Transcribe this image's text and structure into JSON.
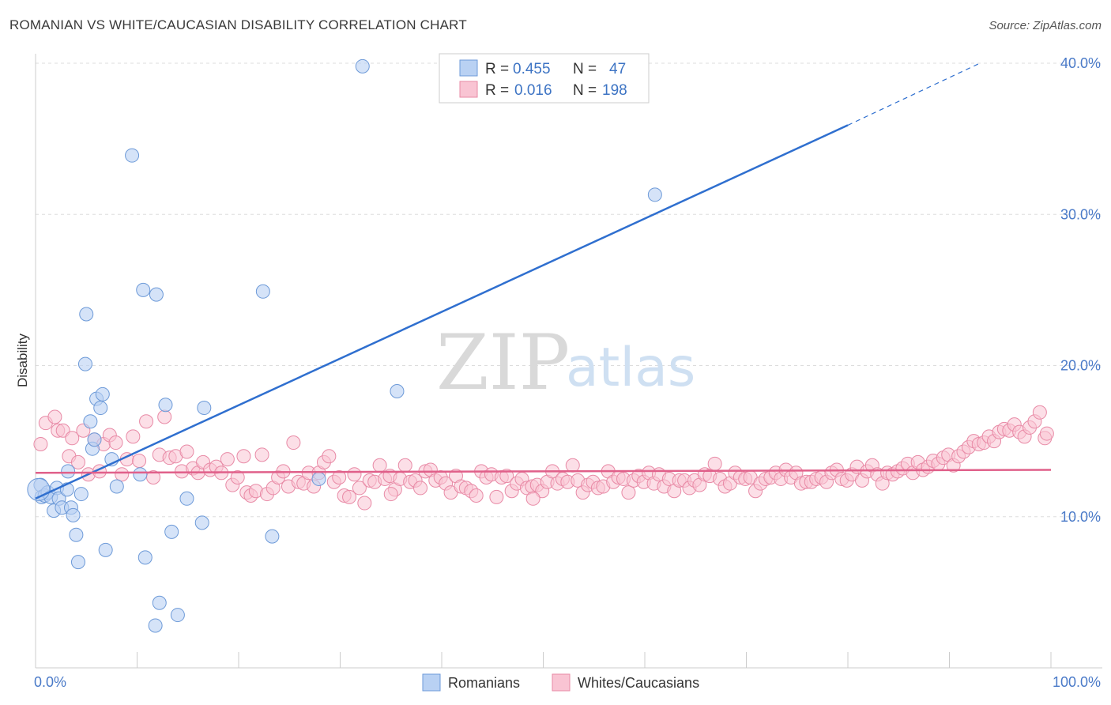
{
  "title": "ROMANIAN VS WHITE/CAUCASIAN DISABILITY CORRELATION CHART",
  "source": "Source: ZipAtlas.com",
  "watermark": {
    "zip": "ZIP",
    "atlas": "atlas"
  },
  "colors": {
    "blue_fill": "#b9d1f3",
    "blue_stroke": "#6d9ad8",
    "blue_line": "#2f6fcf",
    "pink_fill": "#f9c4d3",
    "pink_stroke": "#e88aa6",
    "pink_line": "#e0608a",
    "grid": "#dddddd",
    "tick_label": "#4a7ac8"
  },
  "legend": {
    "rows": [
      {
        "r_label": "R =",
        "r_value": "0.455",
        "n_label": "N =",
        "n_value": "47"
      },
      {
        "r_label": "R =",
        "r_value": "0.016",
        "n_label": "N =",
        "n_value": "198"
      }
    ]
  },
  "bottom_legend": [
    "Romanians",
    "Whites/Caucasians"
  ],
  "chart_data": {
    "type": "scatter",
    "xlabel": "",
    "ylabel": "Disability",
    "xlim": [
      0,
      100
    ],
    "ylim": [
      0,
      41
    ],
    "x_tick_labels": [
      "0.0%",
      "100.0%"
    ],
    "y_ticks": [
      10,
      20,
      30,
      40
    ],
    "y_tick_labels": [
      "10.0%",
      "20.0%",
      "30.0%",
      "40.0%"
    ],
    "series": [
      {
        "name": "Romanians",
        "points": [
          [
            0.5,
            12.1
          ],
          [
            0.6,
            11.3
          ],
          [
            0.9,
            11.4
          ],
          [
            1.2,
            11.6
          ],
          [
            1.5,
            11.3
          ],
          [
            1.8,
            10.4
          ],
          [
            2.1,
            11.9
          ],
          [
            2.3,
            11.2
          ],
          [
            2.6,
            10.6
          ],
          [
            3.1,
            11.8
          ],
          [
            3.2,
            13.0
          ],
          [
            3.5,
            10.6
          ],
          [
            3.7,
            10.1
          ],
          [
            4.0,
            8.8
          ],
          [
            4.2,
            7.0
          ],
          [
            4.5,
            11.5
          ],
          [
            5.0,
            23.4
          ],
          [
            4.9,
            20.1
          ],
          [
            5.4,
            16.3
          ],
          [
            5.6,
            14.5
          ],
          [
            5.8,
            15.1
          ],
          [
            6.0,
            17.8
          ],
          [
            6.4,
            17.2
          ],
          [
            6.6,
            18.1
          ],
          [
            6.9,
            7.8
          ],
          [
            7.5,
            13.8
          ],
          [
            8.0,
            12.0
          ],
          [
            9.5,
            33.9
          ],
          [
            10.3,
            12.8
          ],
          [
            10.6,
            25.0
          ],
          [
            10.8,
            7.3
          ],
          [
            11.9,
            24.7
          ],
          [
            12.2,
            4.3
          ],
          [
            12.8,
            17.4
          ],
          [
            13.4,
            9.0
          ],
          [
            14.0,
            3.5
          ],
          [
            11.8,
            2.8
          ],
          [
            14.9,
            11.2
          ],
          [
            16.4,
            9.6
          ],
          [
            16.6,
            17.2
          ],
          [
            22.4,
            24.9
          ],
          [
            23.3,
            8.7
          ],
          [
            27.9,
            12.5
          ],
          [
            32.2,
            39.8
          ],
          [
            35.6,
            18.3
          ],
          [
            61.0,
            31.3
          ],
          [
            0.3,
            11.8
          ]
        ],
        "trend": {
          "x0": 0,
          "y0": 11.2,
          "x1": 80.0,
          "y1": 35.9,
          "dash_x1": 93.0,
          "dash_y1": 40.0
        }
      },
      {
        "name": "Whites/Caucasians",
        "points": [
          [
            0.5,
            14.8
          ],
          [
            1.0,
            16.2
          ],
          [
            1.9,
            16.6
          ],
          [
            2.2,
            15.7
          ],
          [
            2.7,
            15.7
          ],
          [
            3.3,
            14.0
          ],
          [
            3.6,
            15.2
          ],
          [
            4.2,
            13.6
          ],
          [
            4.7,
            15.7
          ],
          [
            5.2,
            12.8
          ],
          [
            5.8,
            15.1
          ],
          [
            6.3,
            13.0
          ],
          [
            6.7,
            14.8
          ],
          [
            7.3,
            15.4
          ],
          [
            7.9,
            14.9
          ],
          [
            8.5,
            12.8
          ],
          [
            9.0,
            13.8
          ],
          [
            9.6,
            15.3
          ],
          [
            10.2,
            13.7
          ],
          [
            10.9,
            16.3
          ],
          [
            11.6,
            12.6
          ],
          [
            12.2,
            14.1
          ],
          [
            12.7,
            16.6
          ],
          [
            13.2,
            13.9
          ],
          [
            13.8,
            14.0
          ],
          [
            14.4,
            13.0
          ],
          [
            14.9,
            14.3
          ],
          [
            15.5,
            13.2
          ],
          [
            16.0,
            12.9
          ],
          [
            16.5,
            13.6
          ],
          [
            17.2,
            13.1
          ],
          [
            17.8,
            13.3
          ],
          [
            18.3,
            12.9
          ],
          [
            18.9,
            13.8
          ],
          [
            19.4,
            12.1
          ],
          [
            19.9,
            12.6
          ],
          [
            20.5,
            14.0
          ],
          [
            20.8,
            11.6
          ],
          [
            21.2,
            11.4
          ],
          [
            21.7,
            11.7
          ],
          [
            22.3,
            14.1
          ],
          [
            22.8,
            11.5
          ],
          [
            23.4,
            11.9
          ],
          [
            23.9,
            12.6
          ],
          [
            24.4,
            13.0
          ],
          [
            24.9,
            12.0
          ],
          [
            25.4,
            14.9
          ],
          [
            25.9,
            12.3
          ],
          [
            26.4,
            12.2
          ],
          [
            26.9,
            12.9
          ],
          [
            27.4,
            12.0
          ],
          [
            27.9,
            12.9
          ],
          [
            28.4,
            13.6
          ],
          [
            28.9,
            14.0
          ],
          [
            29.4,
            12.3
          ],
          [
            29.9,
            12.6
          ],
          [
            30.4,
            11.4
          ],
          [
            30.9,
            11.3
          ],
          [
            31.4,
            12.8
          ],
          [
            31.9,
            11.9
          ],
          [
            32.4,
            10.9
          ],
          [
            32.9,
            12.4
          ],
          [
            33.4,
            12.3
          ],
          [
            33.9,
            13.4
          ],
          [
            34.4,
            12.5
          ],
          [
            34.9,
            12.7
          ],
          [
            35.4,
            11.8
          ],
          [
            35.9,
            12.5
          ],
          [
            36.4,
            13.4
          ],
          [
            36.9,
            12.3
          ],
          [
            37.4,
            12.4
          ],
          [
            37.9,
            11.9
          ],
          [
            38.4,
            13.0
          ],
          [
            38.9,
            13.1
          ],
          [
            39.4,
            12.4
          ],
          [
            39.9,
            12.6
          ],
          [
            40.4,
            12.2
          ],
          [
            40.9,
            11.6
          ],
          [
            41.4,
            12.7
          ],
          [
            41.9,
            12.0
          ],
          [
            42.4,
            11.9
          ],
          [
            42.9,
            11.7
          ],
          [
            43.4,
            11.4
          ],
          [
            43.9,
            13.0
          ],
          [
            44.4,
            12.6
          ],
          [
            44.9,
            12.8
          ],
          [
            45.4,
            11.3
          ],
          [
            45.9,
            12.6
          ],
          [
            46.4,
            12.7
          ],
          [
            46.9,
            11.7
          ],
          [
            47.4,
            12.2
          ],
          [
            47.9,
            12.5
          ],
          [
            48.4,
            11.9
          ],
          [
            48.9,
            12.0
          ],
          [
            49.4,
            12.1
          ],
          [
            49.9,
            11.7
          ],
          [
            50.4,
            12.3
          ],
          [
            50.9,
            13.0
          ],
          [
            51.4,
            12.2
          ],
          [
            51.9,
            12.5
          ],
          [
            52.4,
            12.3
          ],
          [
            52.9,
            13.4
          ],
          [
            53.4,
            12.4
          ],
          [
            53.9,
            11.6
          ],
          [
            54.4,
            12.1
          ],
          [
            54.9,
            12.3
          ],
          [
            55.4,
            11.9
          ],
          [
            55.9,
            12.0
          ],
          [
            56.4,
            13.0
          ],
          [
            56.9,
            12.3
          ],
          [
            57.4,
            12.6
          ],
          [
            57.9,
            12.5
          ],
          [
            58.4,
            11.6
          ],
          [
            58.9,
            12.4
          ],
          [
            59.4,
            12.7
          ],
          [
            59.9,
            12.3
          ],
          [
            60.4,
            12.9
          ],
          [
            60.9,
            12.2
          ],
          [
            61.4,
            12.8
          ],
          [
            61.9,
            12.0
          ],
          [
            62.4,
            12.5
          ],
          [
            62.9,
            11.7
          ],
          [
            63.4,
            12.4
          ],
          [
            63.9,
            12.4
          ],
          [
            64.4,
            11.9
          ],
          [
            64.9,
            12.4
          ],
          [
            65.4,
            12.1
          ],
          [
            65.9,
            12.8
          ],
          [
            66.4,
            12.7
          ],
          [
            66.9,
            13.5
          ],
          [
            67.4,
            12.5
          ],
          [
            67.9,
            12.0
          ],
          [
            68.4,
            12.2
          ],
          [
            68.9,
            12.9
          ],
          [
            69.4,
            12.6
          ],
          [
            69.9,
            12.5
          ],
          [
            70.4,
            12.6
          ],
          [
            70.9,
            11.7
          ],
          [
            71.4,
            12.2
          ],
          [
            71.9,
            12.5
          ],
          [
            72.4,
            12.6
          ],
          [
            72.9,
            12.9
          ],
          [
            73.4,
            12.5
          ],
          [
            73.9,
            13.1
          ],
          [
            74.4,
            12.6
          ],
          [
            74.9,
            12.9
          ],
          [
            75.4,
            12.2
          ],
          [
            75.9,
            12.3
          ],
          [
            76.4,
            12.3
          ],
          [
            76.9,
            12.5
          ],
          [
            77.4,
            12.6
          ],
          [
            77.9,
            12.3
          ],
          [
            78.4,
            12.9
          ],
          [
            78.9,
            13.1
          ],
          [
            79.4,
            12.5
          ],
          [
            79.9,
            12.4
          ],
          [
            80.4,
            12.8
          ],
          [
            80.9,
            13.3
          ],
          [
            81.4,
            12.4
          ],
          [
            81.9,
            13.0
          ],
          [
            82.4,
            13.4
          ],
          [
            82.9,
            12.8
          ],
          [
            83.4,
            12.2
          ],
          [
            83.9,
            12.9
          ],
          [
            84.4,
            12.8
          ],
          [
            84.9,
            13.0
          ],
          [
            85.4,
            13.2
          ],
          [
            85.9,
            13.5
          ],
          [
            86.4,
            12.9
          ],
          [
            86.9,
            13.6
          ],
          [
            87.4,
            13.1
          ],
          [
            87.9,
            13.3
          ],
          [
            88.4,
            13.7
          ],
          [
            88.9,
            13.5
          ],
          [
            89.4,
            13.9
          ],
          [
            89.9,
            14.1
          ],
          [
            90.4,
            13.4
          ],
          [
            90.9,
            14.0
          ],
          [
            91.4,
            14.3
          ],
          [
            91.9,
            14.6
          ],
          [
            92.4,
            15.0
          ],
          [
            92.9,
            14.8
          ],
          [
            93.4,
            14.9
          ],
          [
            93.9,
            15.3
          ],
          [
            94.4,
            15.0
          ],
          [
            94.9,
            15.6
          ],
          [
            95.4,
            15.8
          ],
          [
            95.9,
            15.7
          ],
          [
            96.4,
            16.1
          ],
          [
            96.9,
            15.6
          ],
          [
            97.4,
            15.3
          ],
          [
            97.9,
            15.9
          ],
          [
            98.4,
            16.3
          ],
          [
            98.9,
            16.9
          ],
          [
            99.4,
            15.2
          ],
          [
            99.6,
            15.5
          ],
          [
            35.0,
            11.5
          ],
          [
            49.0,
            11.2
          ]
        ],
        "trend": {
          "x0": 0,
          "y0": 12.9,
          "x1": 100,
          "y1": 13.1
        }
      }
    ]
  }
}
